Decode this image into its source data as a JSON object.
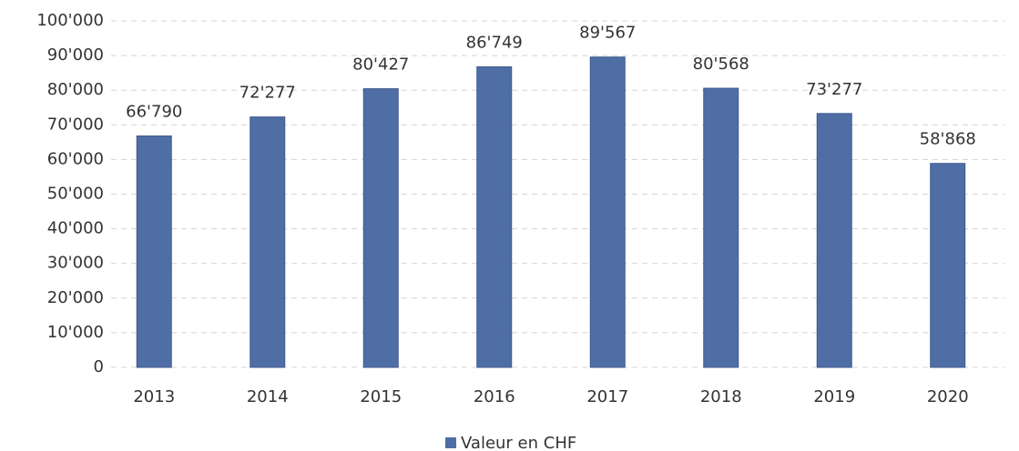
{
  "chart_data": {
    "type": "bar",
    "categories": [
      "2013",
      "2014",
      "2015",
      "2016",
      "2017",
      "2018",
      "2019",
      "2020"
    ],
    "series": [
      {
        "name": "Valeur en CHF",
        "color": "#4f6ea6",
        "values": [
          66790,
          72277,
          80427,
          86749,
          89567,
          80568,
          73277,
          58868
        ],
        "value_labels": [
          "66'790",
          "72'277",
          "80'427",
          "86'749",
          "89'567",
          "80'568",
          "73'277",
          "58'868"
        ]
      }
    ],
    "ylim": [
      0,
      100000
    ],
    "yticks": [
      0,
      {
        "value": 10000,
        "label": "10'000"
      },
      {
        "value": 20000,
        "label": "20'000"
      },
      {
        "value": 30000,
        "label": "30'000"
      },
      {
        "value": 40000,
        "label": "40'000"
      },
      {
        "value": 50000,
        "label": "50'000"
      },
      {
        "value": 60000,
        "label": "60'000"
      },
      {
        "value": 70000,
        "label": "70'000"
      },
      {
        "value": 80000,
        "label": "80'000"
      },
      {
        "value": 90000,
        "label": "90'000"
      },
      {
        "value": 100000,
        "label": "100'000"
      }
    ],
    "grid": true,
    "legend": "bottom"
  }
}
